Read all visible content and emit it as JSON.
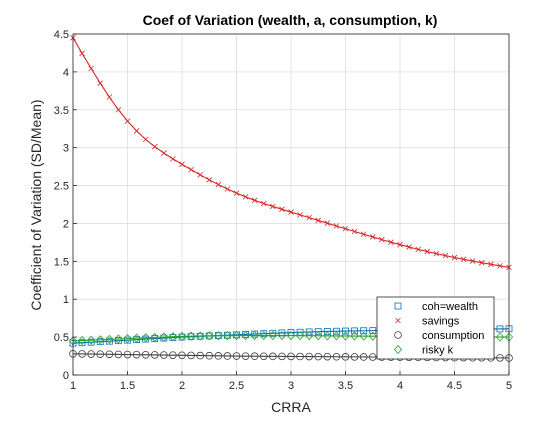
{
  "chart_data": {
    "type": "line",
    "title": "Coef of Variation (wealth, a, consumption, k)",
    "xlabel": "CRRA",
    "ylabel": "Coefficient of Variation (SD/Mean)",
    "xlim": [
      1,
      5
    ],
    "ylim": [
      0,
      4.5
    ],
    "xticks": [
      1,
      1.5,
      2,
      2.5,
      3,
      3.5,
      4,
      4.5,
      5
    ],
    "xtick_labels": [
      "1",
      "1.5",
      "2",
      "2.5",
      "3",
      "3.5",
      "4",
      "4.5",
      "5"
    ],
    "yticks": [
      0,
      0.5,
      1,
      1.5,
      2,
      2.5,
      3,
      3.5,
      4,
      4.5
    ],
    "ytick_labels": [
      "0",
      "0.5",
      "1",
      "1.5",
      "2",
      "2.5",
      "3",
      "3.5",
      "4",
      "4.5"
    ],
    "grid": true,
    "legend_location": "bottom-right",
    "x": [
      1.0,
      1.5,
      2.0,
      2.5,
      3.0,
      3.5,
      4.0,
      4.5,
      5.0
    ],
    "series": [
      {
        "name": "coh=wealth",
        "marker": "square",
        "color": "#0072BD",
        "values": [
          0.42,
          0.46,
          0.5,
          0.53,
          0.56,
          0.58,
          0.59,
          0.6,
          0.61
        ]
      },
      {
        "name": "savings",
        "marker": "x",
        "color": "#D62728",
        "values": [
          4.45,
          3.35,
          2.78,
          2.4,
          2.15,
          1.93,
          1.72,
          1.55,
          1.42
        ]
      },
      {
        "name": "consumption",
        "marker": "circle",
        "color": "#404040",
        "values": [
          0.28,
          0.27,
          0.26,
          0.25,
          0.245,
          0.24,
          0.235,
          0.23,
          0.225
        ]
      },
      {
        "name": "risky k",
        "marker": "diamond",
        "color": "#2CA02C",
        "values": [
          0.45,
          0.48,
          0.51,
          0.52,
          0.52,
          0.515,
          0.51,
          0.505,
          0.5
        ]
      }
    ]
  }
}
